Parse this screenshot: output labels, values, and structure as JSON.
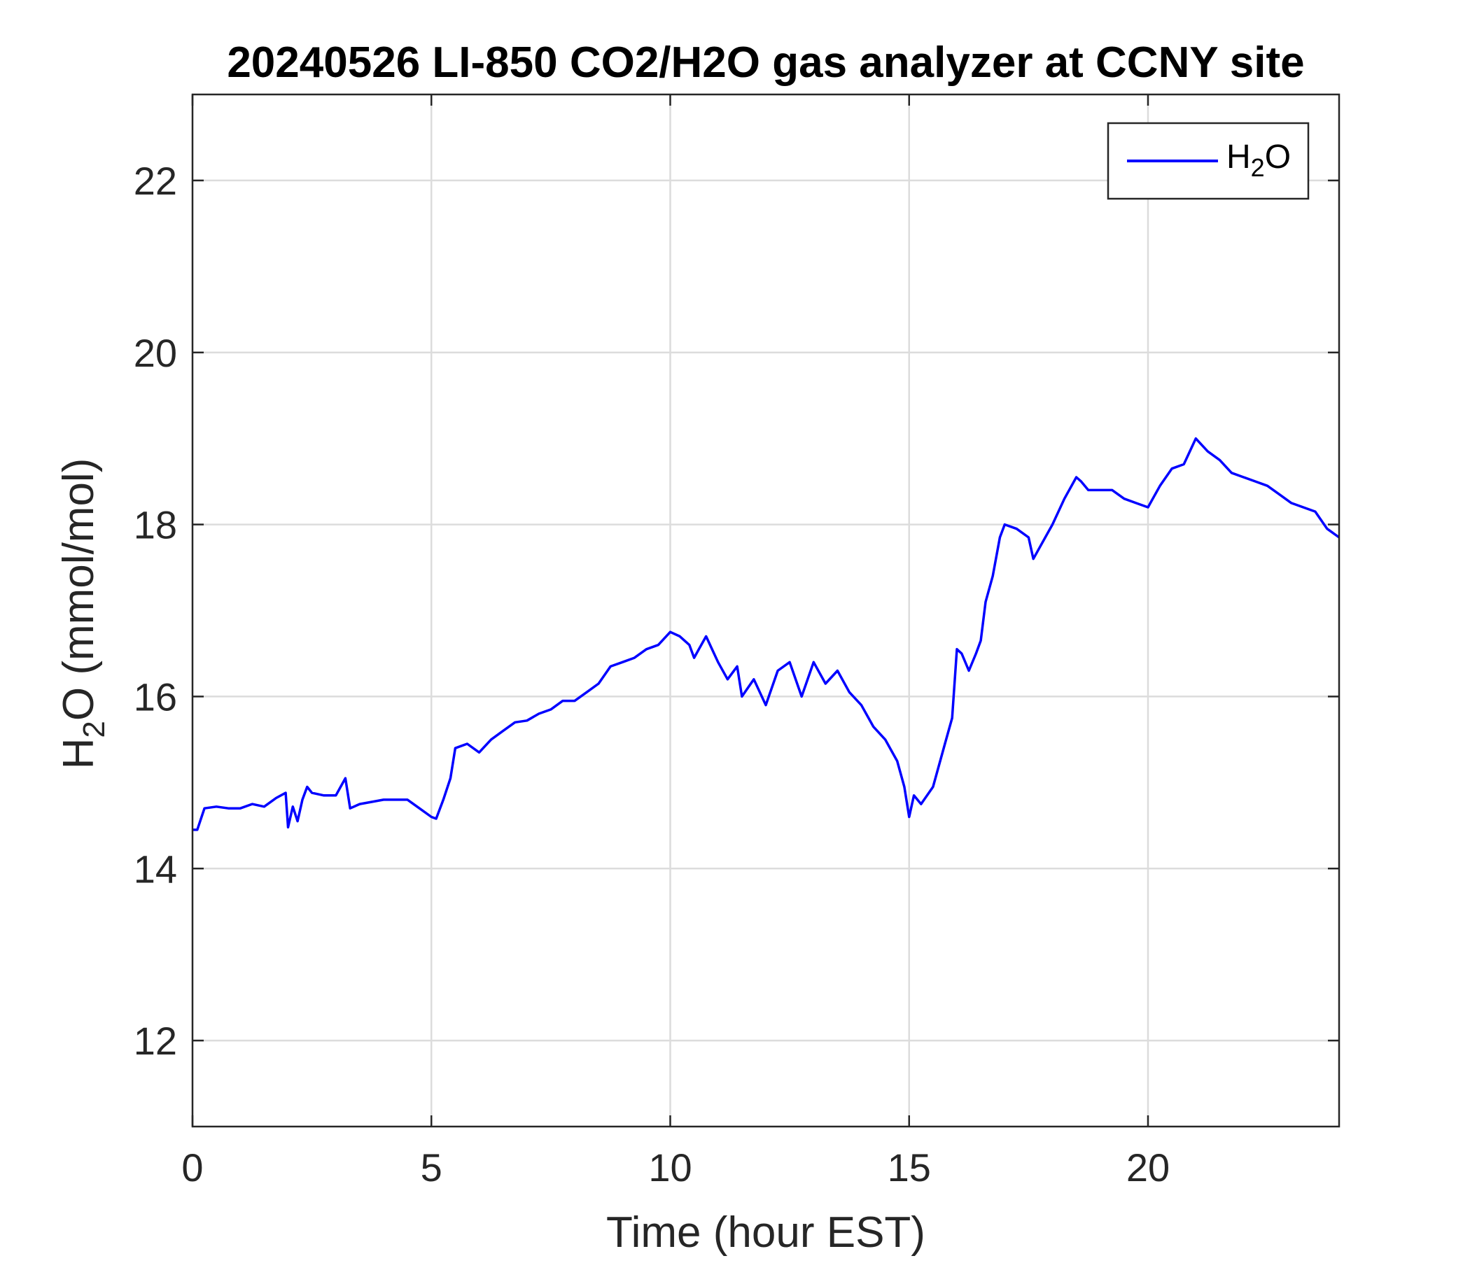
{
  "chart_data": {
    "type": "line",
    "title": "20240526 LI-850 CO2/H2O gas analyzer at CCNY site",
    "xlabel": "Time (hour EST)",
    "ylabel_parts": [
      "H",
      "2",
      "O (mmol/mol)"
    ],
    "xlim": [
      0,
      24
    ],
    "ylim": [
      11,
      23
    ],
    "xticks": [
      0,
      5,
      10,
      15,
      20
    ],
    "xtick_labels": [
      "0",
      "5",
      "10",
      "15",
      "20"
    ],
    "yticks": [
      12,
      14,
      16,
      18,
      20,
      22
    ],
    "ytick_labels": [
      "12",
      "14",
      "16",
      "18",
      "20",
      "22"
    ],
    "grid": true,
    "legend_position": "top-right",
    "series": [
      {
        "name_parts": [
          "H",
          "2",
          "O"
        ],
        "color": "#0000ff",
        "x": [
          0.0,
          0.1,
          0.25,
          0.5,
          0.75,
          1.0,
          1.25,
          1.5,
          1.75,
          1.95,
          2.0,
          2.1,
          2.2,
          2.3,
          2.4,
          2.5,
          2.75,
          3.0,
          3.1,
          3.2,
          3.3,
          3.5,
          4.0,
          4.5,
          4.75,
          5.0,
          5.1,
          5.25,
          5.4,
          5.5,
          5.75,
          6.0,
          6.25,
          6.5,
          6.75,
          7.0,
          7.25,
          7.5,
          7.75,
          8.0,
          8.25,
          8.5,
          8.75,
          9.0,
          9.25,
          9.5,
          9.75,
          10.0,
          10.2,
          10.4,
          10.5,
          10.6,
          10.75,
          11.0,
          11.2,
          11.4,
          11.5,
          11.75,
          12.0,
          12.25,
          12.5,
          12.75,
          13.0,
          13.25,
          13.5,
          13.75,
          14.0,
          14.25,
          14.5,
          14.75,
          14.9,
          15.0,
          15.1,
          15.25,
          15.5,
          15.75,
          15.9,
          16.0,
          16.1,
          16.25,
          16.4,
          16.5,
          16.6,
          16.75,
          16.9,
          17.0,
          17.25,
          17.5,
          17.6,
          17.75,
          18.0,
          18.25,
          18.5,
          18.6,
          18.75,
          19.0,
          19.25,
          19.5,
          19.75,
          20.0,
          20.25,
          20.5,
          20.75,
          21.0,
          21.25,
          21.5,
          21.75,
          22.0,
          22.25,
          22.5,
          22.75,
          23.0,
          23.25,
          23.5,
          23.75,
          24.0
        ],
        "values": [
          14.45,
          14.45,
          14.7,
          14.72,
          14.7,
          14.7,
          14.75,
          14.72,
          14.82,
          14.88,
          14.48,
          14.72,
          14.55,
          14.8,
          14.95,
          14.88,
          14.85,
          14.85,
          14.95,
          15.05,
          14.7,
          14.75,
          14.8,
          14.8,
          14.7,
          14.6,
          14.58,
          14.8,
          15.05,
          15.4,
          15.45,
          15.35,
          15.5,
          15.6,
          15.7,
          15.72,
          15.8,
          15.85,
          15.95,
          15.95,
          16.05,
          16.15,
          16.35,
          16.4,
          16.45,
          16.55,
          16.6,
          16.75,
          16.7,
          16.6,
          16.45,
          16.55,
          16.7,
          16.4,
          16.2,
          16.35,
          16.0,
          16.2,
          15.9,
          16.3,
          16.4,
          16.0,
          16.4,
          16.15,
          16.3,
          16.05,
          15.9,
          15.65,
          15.5,
          15.25,
          14.95,
          14.6,
          14.85,
          14.75,
          14.95,
          15.45,
          15.75,
          16.55,
          16.5,
          16.3,
          16.5,
          16.65,
          17.1,
          17.4,
          17.85,
          18.0,
          17.95,
          17.85,
          17.6,
          17.75,
          18.0,
          18.3,
          18.55,
          18.5,
          18.4,
          18.4,
          18.4,
          18.3,
          18.25,
          18.2,
          18.45,
          18.65,
          18.7,
          19.0,
          18.85,
          18.75,
          18.6,
          18.55,
          18.5,
          18.45,
          18.35,
          18.25,
          18.2,
          18.15,
          17.95,
          17.85
        ]
      }
    ]
  }
}
